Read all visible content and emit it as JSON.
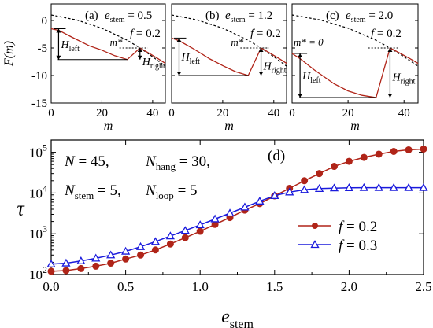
{
  "chart_data": [
    {
      "type": "line",
      "panel": "a",
      "title": "(a)",
      "params": [
        {
          "sym": "e",
          "sub": "stem",
          "eq": " = 0.5"
        },
        {
          "sym": "f",
          "sub": "",
          "eq": " = 0.2"
        }
      ],
      "ylabel_sym": "F",
      "ylabel_arg": "(m)",
      "xlabel": "m",
      "xlim": [
        0,
        45
      ],
      "ylim": [
        -15,
        3
      ],
      "xticks": [
        0,
        20,
        40
      ],
      "yticks": [
        0,
        -5,
        -10,
        -15
      ],
      "series": [
        {
          "style": "dashed",
          "color": "#000000",
          "x": [
            0,
            10,
            20,
            30,
            35,
            40,
            45
          ],
          "y": [
            1,
            0.1,
            -1.4,
            -3.6,
            -5,
            -6.6,
            -8.3
          ]
        },
        {
          "style": "solid",
          "color": "#b02418",
          "x": [
            0,
            3,
            8,
            15,
            20,
            25,
            30,
            35,
            38,
            42,
            45
          ],
          "y": [
            -1.5,
            -1.8,
            -3.0,
            -4.6,
            -5.4,
            -6.4,
            -7.1,
            -5.0,
            -5.8,
            -6.9,
            -7.8
          ]
        }
      ],
      "annotations": {
        "mstar_label": "m*",
        "mstar": 30,
        "hleft_label": "H",
        "hleft_sub": "left",
        "hright_label": "H",
        "hright_sub": "right",
        "level_top": -1.5,
        "level_bottom": -7.1,
        "level_peak": -5.0,
        "peak_x": 35
      }
    },
    {
      "type": "line",
      "panel": "b",
      "title": "(b)",
      "params": [
        {
          "sym": "e",
          "sub": "stem",
          "eq": " = 1.2"
        },
        {
          "sym": "f",
          "sub": "",
          "eq": " = 0.2"
        }
      ],
      "xlabel": "m",
      "xlim": [
        0,
        45
      ],
      "ylim": [
        -15,
        3
      ],
      "xticks": [
        0,
        20,
        40
      ],
      "series": [
        {
          "style": "dashed",
          "color": "#000000",
          "x": [
            0,
            10,
            20,
            30,
            35,
            40,
            45
          ],
          "y": [
            1,
            0.1,
            -1.4,
            -3.6,
            -5,
            -6.6,
            -8.3
          ]
        },
        {
          "style": "solid",
          "color": "#b02418",
          "x": [
            0,
            3,
            8,
            15,
            20,
            25,
            30,
            35,
            38,
            42,
            45
          ],
          "y": [
            -3.2,
            -3.7,
            -5.0,
            -7.0,
            -8.2,
            -9.3,
            -10.0,
            -5.0,
            -5.8,
            -6.9,
            -7.8
          ]
        }
      ],
      "annotations": {
        "mstar_label": "m*",
        "mstar": 30,
        "hleft_label": "H",
        "hleft_sub": "left",
        "hright_label": "H",
        "hright_sub": "right",
        "level_top": -3.2,
        "level_bottom": -10.0,
        "level_peak": -5.0,
        "peak_x": 35
      }
    },
    {
      "type": "line",
      "panel": "c",
      "title": "(c)",
      "params": [
        {
          "sym": "e",
          "sub": "stem",
          "eq": " = 2.0"
        },
        {
          "sym": "f",
          "sub": "",
          "eq": " = 0.2"
        }
      ],
      "xlabel": "m",
      "xlim": [
        0,
        45
      ],
      "ylim": [
        -15,
        3
      ],
      "xticks": [
        0,
        20,
        40
      ],
      "series": [
        {
          "style": "dashed",
          "color": "#000000",
          "x": [
            0,
            10,
            20,
            30,
            35,
            40,
            45
          ],
          "y": [
            1,
            0.1,
            -1.4,
            -3.6,
            -5,
            -6.6,
            -8.3
          ]
        },
        {
          "style": "solid",
          "color": "#b02418",
          "x": [
            0,
            3,
            8,
            15,
            20,
            25,
            30,
            35,
            38,
            42,
            45
          ],
          "y": [
            -6.0,
            -7.0,
            -9.0,
            -11.5,
            -12.8,
            -13.6,
            -14.0,
            -5.0,
            -5.8,
            -6.9,
            -7.8
          ]
        }
      ],
      "annotations": {
        "mstar_label": "m* = 0",
        "mstar": 30,
        "hleft_label": "H",
        "hleft_sub": "left",
        "hright_label": "H",
        "hright_sub": "right",
        "level_top": -6.0,
        "level_bottom": -14.0,
        "level_peak": -5.0,
        "peak_x": 35
      }
    },
    {
      "type": "line",
      "panel": "d",
      "title": "(d)",
      "xlabel_sym": "e",
      "xlabel_sub": "stem",
      "ylabel": "τ",
      "xlim": [
        0,
        2.5
      ],
      "ylim": [
        100,
        200000
      ],
      "yscale": "log",
      "xticks": [
        0.0,
        0.5,
        1.0,
        1.5,
        2.0,
        2.5
      ],
      "xtick_labels": [
        "0.0",
        "0.5",
        "1.0",
        "1.5",
        "2.0",
        "2.5"
      ],
      "ytick_exponents": [
        2,
        3,
        4,
        5
      ],
      "legend": {
        "position": "center-right"
      },
      "info": [
        [
          {
            "sym": "N",
            "sub": "",
            "eq": "     = 45,"
          },
          {
            "sym": "N",
            "sub": "hang",
            "eq": " = 30,"
          }
        ],
        [
          {
            "sym": "N",
            "sub": "stem",
            "eq": " =  5,"
          },
          {
            "sym": "N",
            "sub": "loop",
            "eq": " = 5"
          }
        ]
      ],
      "series": [
        {
          "legend_sym": "f",
          "legend_eq": " = 0.2",
          "color": "#b02418",
          "marker": "circle",
          "x": [
            0,
            0.1,
            0.2,
            0.3,
            0.4,
            0.5,
            0.6,
            0.7,
            0.8,
            0.9,
            1.0,
            1.1,
            1.2,
            1.3,
            1.4,
            1.5,
            1.6,
            1.7,
            1.8,
            1.9,
            2.0,
            2.1,
            2.2,
            2.3,
            2.4,
            2.5
          ],
          "y": [
            120,
            125,
            140,
            160,
            190,
            240,
            300,
            400,
            560,
            800,
            1150,
            1700,
            2500,
            3800,
            5500,
            8500,
            13000,
            20000,
            30000,
            45000,
            60000,
            75000,
            90000,
            105000,
            115000,
            120000
          ]
        },
        {
          "legend_sym": "f",
          "legend_eq": " = 0.3",
          "color": "#1a1adc",
          "marker": "triangle",
          "x": [
            0,
            0.1,
            0.2,
            0.3,
            0.4,
            0.5,
            0.6,
            0.7,
            0.8,
            0.9,
            1.0,
            1.1,
            1.2,
            1.3,
            1.4,
            1.5,
            1.6,
            1.7,
            1.8,
            1.9,
            2.0,
            2.1,
            2.2,
            2.3,
            2.4,
            2.5
          ],
          "y": [
            180,
            190,
            215,
            250,
            300,
            370,
            480,
            640,
            880,
            1200,
            1650,
            2300,
            3200,
            4500,
            6300,
            8600,
            10500,
            12000,
            12800,
            13200,
            13400,
            13500,
            13500,
            13500,
            13500,
            13500
          ]
        }
      ]
    }
  ]
}
